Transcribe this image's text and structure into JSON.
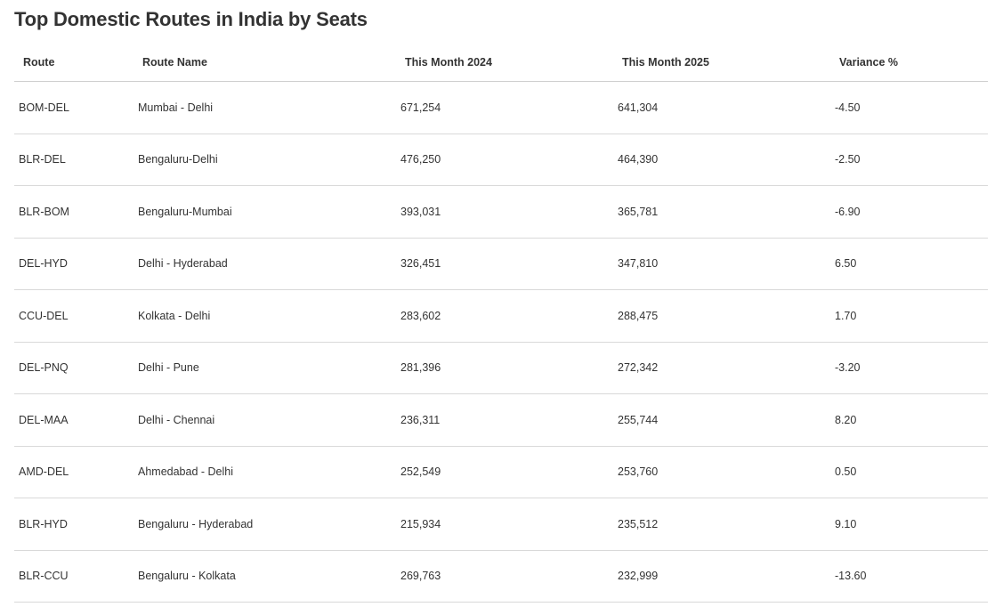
{
  "title": "Top Domestic Routes in India by Seats",
  "table": {
    "headers": [
      "Route",
      "Route Name",
      "This Month 2024",
      "This Month 2025",
      "Variance %"
    ],
    "rows": [
      [
        "BOM-DEL",
        "Mumbai - Delhi",
        "671,254",
        "641,304",
        "-4.50"
      ],
      [
        "BLR-DEL",
        "Bengaluru-Delhi",
        "476,250",
        "464,390",
        "-2.50"
      ],
      [
        "BLR-BOM",
        "Bengaluru-Mumbai",
        "393,031",
        "365,781",
        "-6.90"
      ],
      [
        "DEL-HYD",
        "Delhi - Hyderabad",
        "326,451",
        "347,810",
        "6.50"
      ],
      [
        "CCU-DEL",
        "Kolkata - Delhi",
        "283,602",
        "288,475",
        "1.70"
      ],
      [
        "DEL-PNQ",
        "Delhi - Pune",
        "281,396",
        "272,342",
        "-3.20"
      ],
      [
        "DEL-MAA",
        "Delhi - Chennai",
        "236,311",
        "255,744",
        "8.20"
      ],
      [
        "AMD-DEL",
        "Ahmedabad - Delhi",
        "252,549",
        "253,760",
        "0.50"
      ],
      [
        "BLR-HYD",
        "Bengaluru - Hyderabad",
        "215,934",
        "235,512",
        "9.10"
      ],
      [
        "BLR-CCU",
        "Bengaluru - Kolkata",
        "269,763",
        "232,999",
        "-13.60"
      ]
    ]
  },
  "chart_data": {
    "type": "table",
    "title": "Top Domestic Routes in India by Seats",
    "columns": [
      "Route",
      "Route Name",
      "This Month 2024",
      "This Month 2025",
      "Variance %"
    ],
    "rows": [
      {
        "route": "BOM-DEL",
        "route_name": "Mumbai - Delhi",
        "this_month_2024": 671254,
        "this_month_2025": 641304,
        "variance_pct": -4.5
      },
      {
        "route": "BLR-DEL",
        "route_name": "Bengaluru-Delhi",
        "this_month_2024": 476250,
        "this_month_2025": 464390,
        "variance_pct": -2.5
      },
      {
        "route": "BLR-BOM",
        "route_name": "Bengaluru-Mumbai",
        "this_month_2024": 393031,
        "this_month_2025": 365781,
        "variance_pct": -6.9
      },
      {
        "route": "DEL-HYD",
        "route_name": "Delhi - Hyderabad",
        "this_month_2024": 326451,
        "this_month_2025": 347810,
        "variance_pct": 6.5
      },
      {
        "route": "CCU-DEL",
        "route_name": "Kolkata - Delhi",
        "this_month_2024": 283602,
        "this_month_2025": 288475,
        "variance_pct": 1.7
      },
      {
        "route": "DEL-PNQ",
        "route_name": "Delhi - Pune",
        "this_month_2024": 281396,
        "this_month_2025": 272342,
        "variance_pct": -3.2
      },
      {
        "route": "DEL-MAA",
        "route_name": "Delhi - Chennai",
        "this_month_2024": 236311,
        "this_month_2025": 255744,
        "variance_pct": 8.2
      },
      {
        "route": "AMD-DEL",
        "route_name": "Ahmedabad - Delhi",
        "this_month_2024": 252549,
        "this_month_2025": 253760,
        "variance_pct": 0.5
      },
      {
        "route": "BLR-HYD",
        "route_name": "Bengaluru - Hyderabad",
        "this_month_2024": 215934,
        "this_month_2025": 235512,
        "variance_pct": 9.1
      },
      {
        "route": "BLR-CCU",
        "route_name": "Bengaluru - Kolkata",
        "this_month_2024": 269763,
        "this_month_2025": 232999,
        "variance_pct": -13.6
      }
    ]
  }
}
